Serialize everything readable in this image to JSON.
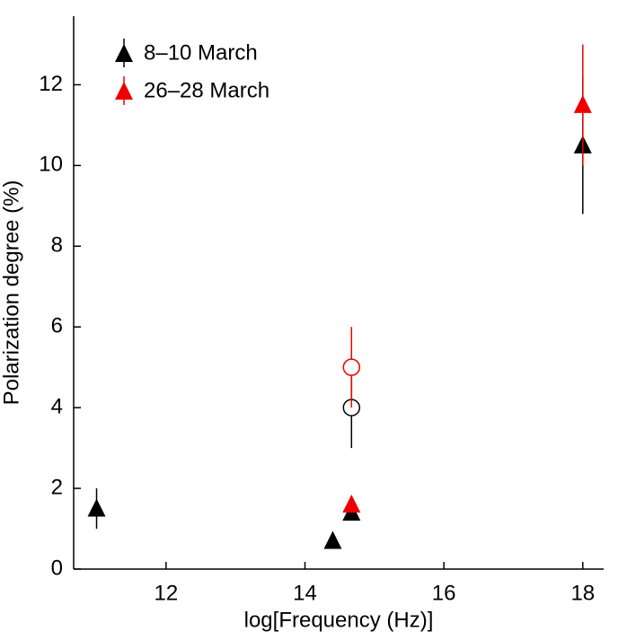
{
  "chart_data": {
    "type": "scatter",
    "xlabel": "log[Frequency (Hz)]",
    "ylabel": "Polarization degree (%)",
    "xlim": [
      10.67,
      18.3
    ],
    "ylim": [
      0,
      13.7
    ],
    "xticks": [
      12,
      14,
      16,
      18
    ],
    "yticks": [
      0,
      2,
      4,
      6,
      8,
      10,
      12
    ],
    "legend": "upper left",
    "series": [
      {
        "name": "8–10 March",
        "color": "#000000",
        "marker": "triangle",
        "x": [
          11,
          14.4,
          14.67,
          18
        ],
        "values": [
          1.5,
          0.7,
          1.4,
          10.5
        ],
        "errors": [
          0.5,
          0,
          0.2,
          1.7
        ]
      },
      {
        "color": "#000000",
        "marker": "circle",
        "x": [
          14.67
        ],
        "values": [
          4
        ],
        "errors": [
          1
        ]
      },
      {
        "name": "26–28 March",
        "color": "#ee0000",
        "marker": "triangle",
        "x": [
          14.67,
          18
        ],
        "values": [
          1.6,
          11.5
        ],
        "errors": [
          0.1,
          1.5
        ]
      },
      {
        "color": "#ee0000",
        "marker": "circle",
        "x": [
          14.67
        ],
        "values": [
          5
        ],
        "errors": [
          1
        ]
      }
    ]
  }
}
